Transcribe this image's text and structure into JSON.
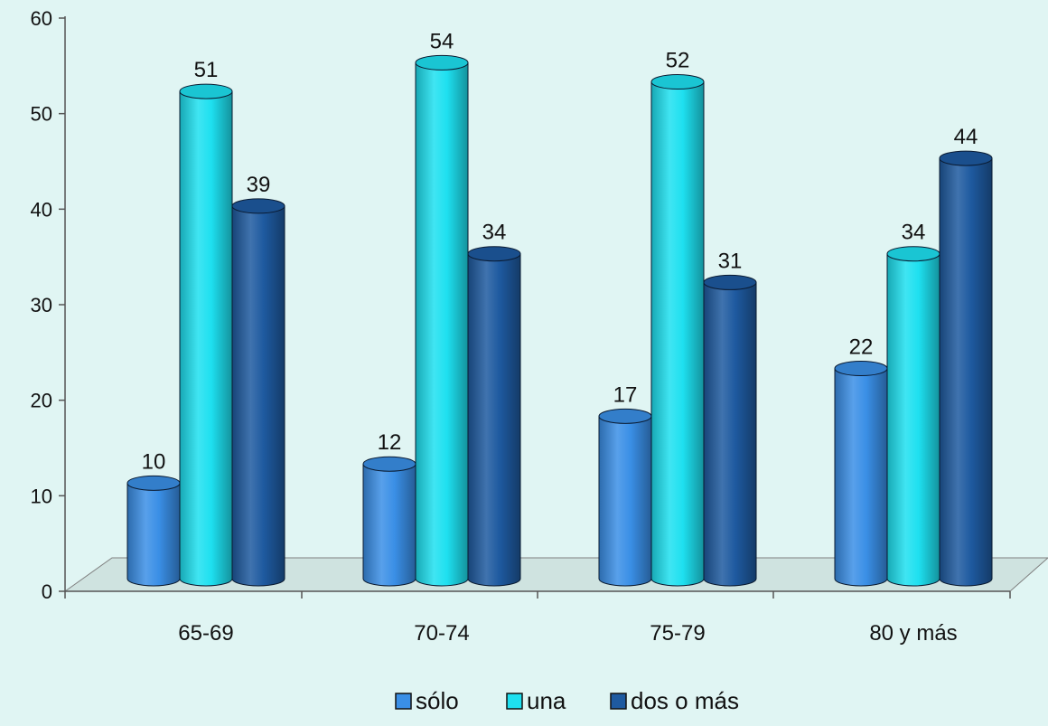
{
  "chart_data": {
    "type": "bar",
    "title": "",
    "xlabel": "",
    "ylabel": "",
    "categories": [
      "65-69",
      "70-74",
      "75-79",
      "80 y más"
    ],
    "series": [
      {
        "name": "sólo",
        "values": [
          10,
          12,
          17,
          22
        ],
        "color": "#3a8fe6"
      },
      {
        "name": "una",
        "values": [
          51,
          54,
          52,
          34
        ],
        "color": "#1ee0f0"
      },
      {
        "name": "dos o más",
        "values": [
          39,
          34,
          31,
          44
        ],
        "color": "#1e5aa0"
      }
    ],
    "ylim": [
      0,
      60
    ],
    "yticks": [
      0,
      10,
      20,
      30,
      40,
      50,
      60
    ],
    "data_labels": true,
    "grid": false,
    "legend_position": "bottom",
    "style": "3d-cylinder"
  }
}
